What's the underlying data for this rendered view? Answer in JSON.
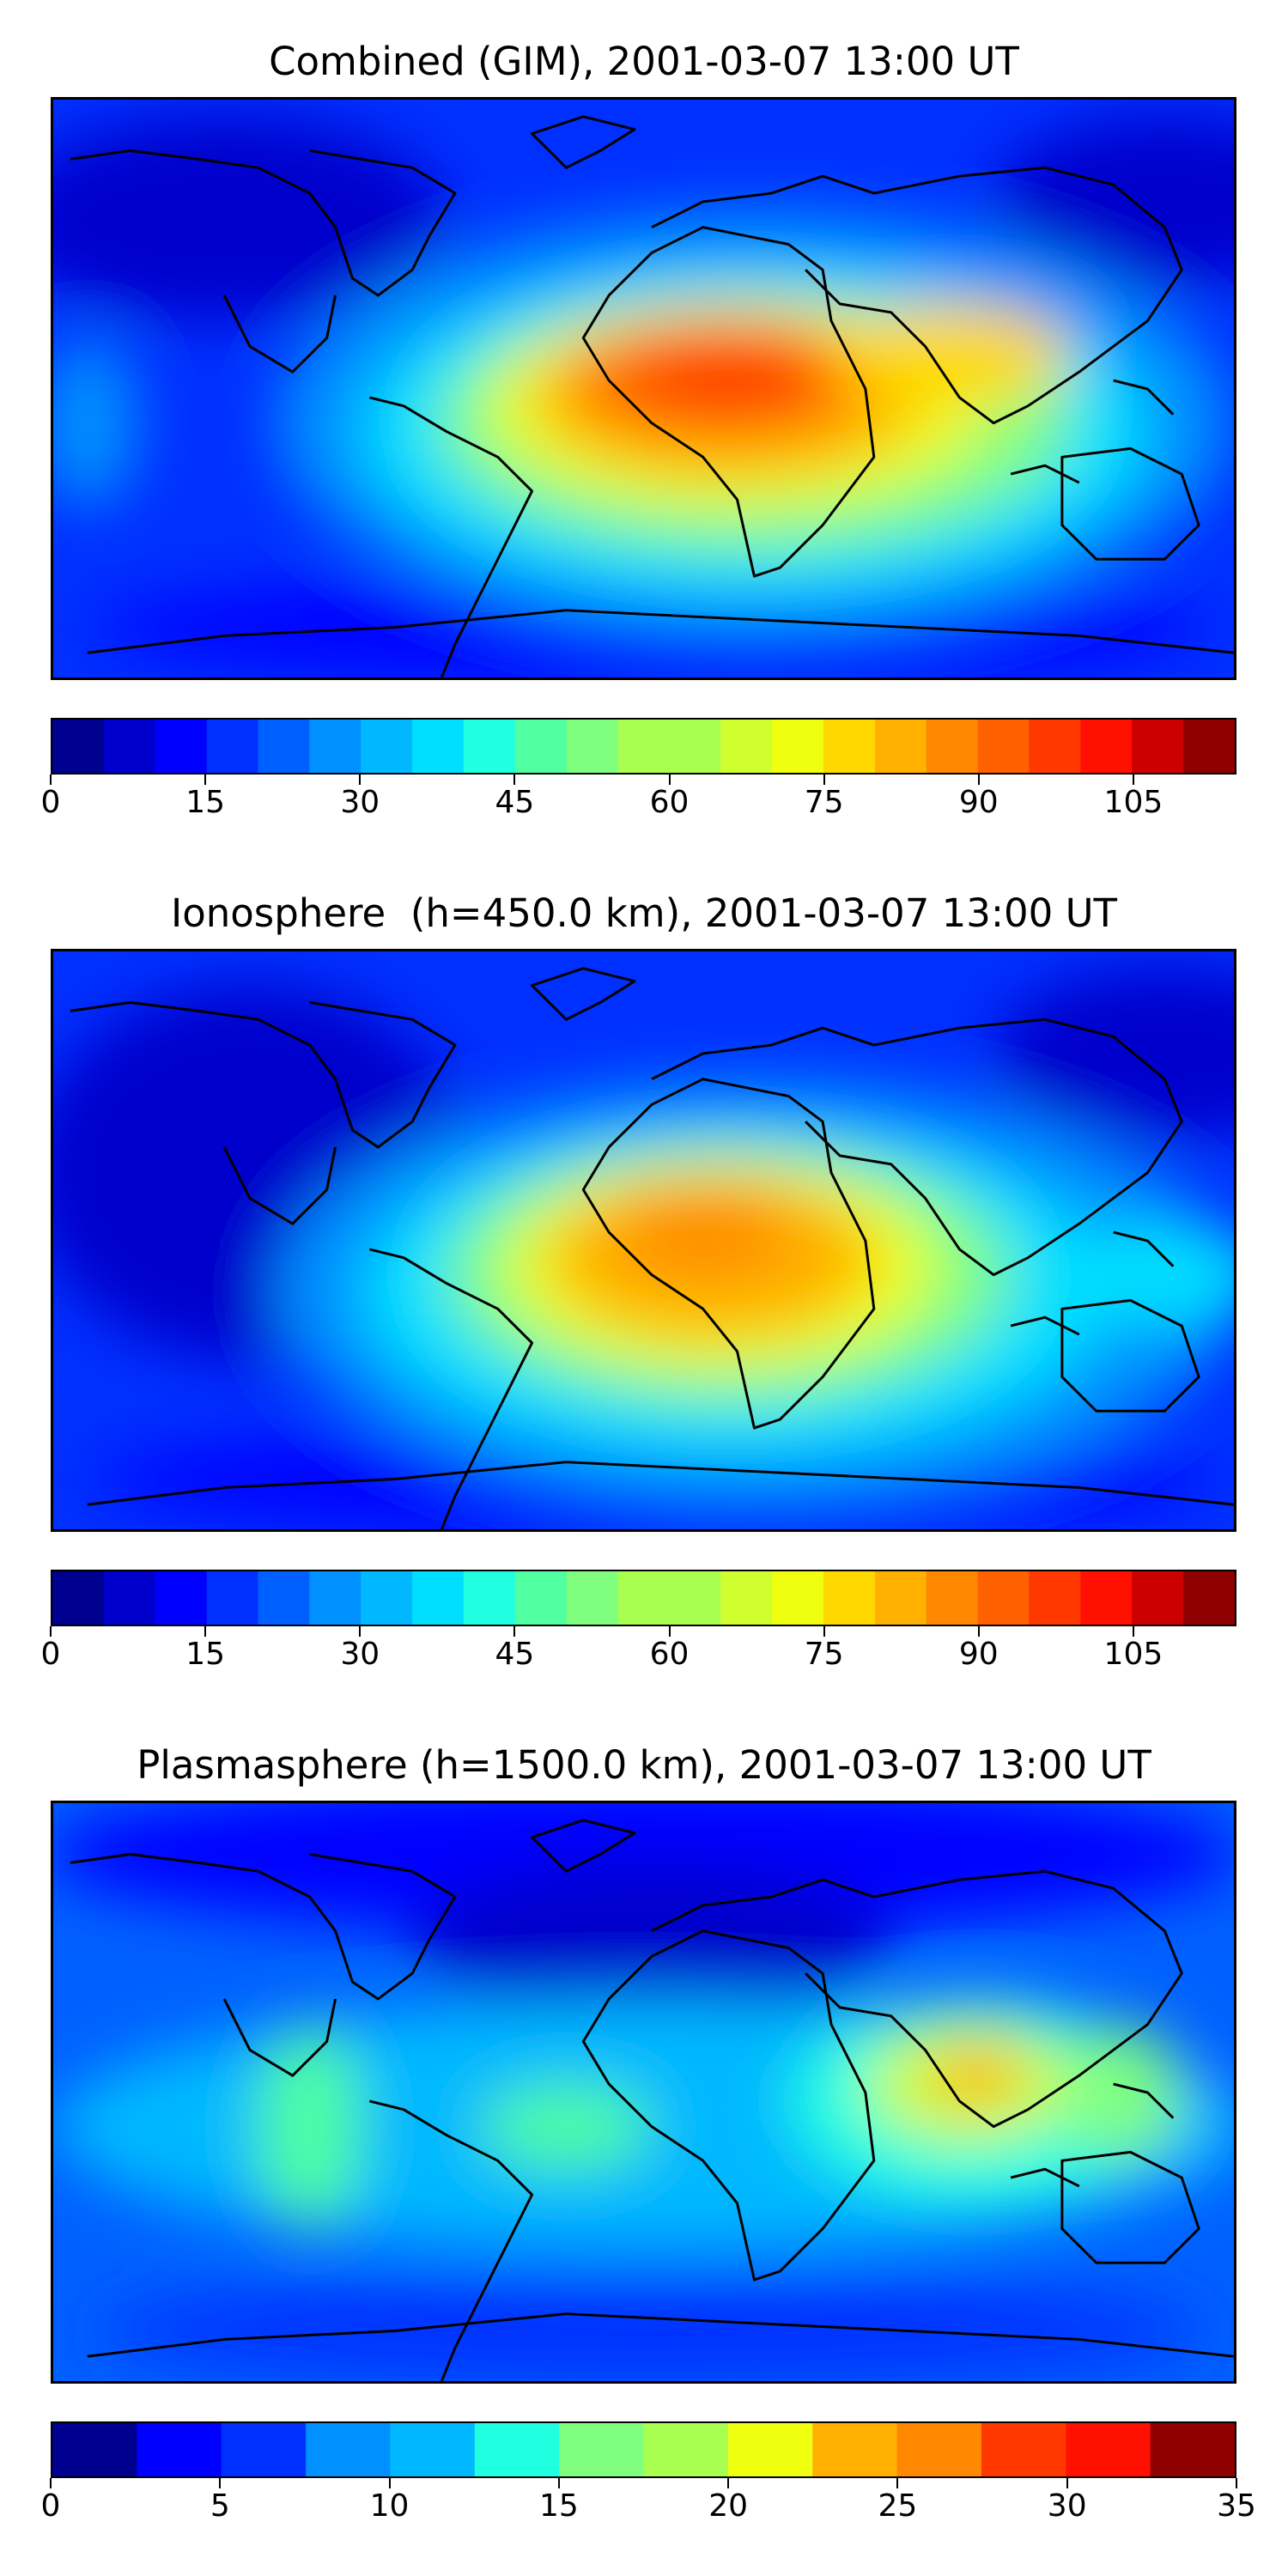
{
  "panels": [
    {
      "title": "Combined (GIM), 2001-03-07 13:00 UT",
      "hotspot": "africa",
      "colorbar": {
        "min": 0,
        "max": 115,
        "step": 5,
        "ticks": [
          "0",
          "15",
          "30",
          "45",
          "60",
          "75",
          "90",
          "105"
        ],
        "tick_values": [
          0,
          15,
          30,
          45,
          60,
          75,
          90,
          105
        ]
      }
    },
    {
      "title": "Ionosphere  (h=450.0 km), 2001-03-07 13:00 UT",
      "hotspot": "africa-weaker",
      "colorbar": {
        "min": 0,
        "max": 115,
        "step": 5,
        "ticks": [
          "0",
          "15",
          "30",
          "45",
          "60",
          "75",
          "90",
          "105"
        ],
        "tick_values": [
          0,
          15,
          30,
          45,
          60,
          75,
          90,
          105
        ]
      }
    },
    {
      "title": "Plasmasphere (h=1500.0 km), 2001-03-07 13:00 UT",
      "hotspot": "asia",
      "colorbar": {
        "min": 0,
        "max": 35,
        "step": 2.5,
        "ticks": [
          "0",
          "5",
          "10",
          "15",
          "20",
          "25",
          "30",
          "35"
        ],
        "tick_values": [
          0,
          5,
          10,
          15,
          20,
          25,
          30,
          35
        ]
      }
    }
  ],
  "palette": [
    "#00008f",
    "#0000cc",
    "#0000ff",
    "#0030ff",
    "#0060ff",
    "#0090ff",
    "#00b8ff",
    "#00dfff",
    "#20ffdf",
    "#50ff9f",
    "#80ff7f",
    "#a8ff50",
    "#d0ff2f",
    "#f0ff10",
    "#ffd800",
    "#ffb000",
    "#ff8800",
    "#ff6000",
    "#ff3800",
    "#ff1000",
    "#cc0000",
    "#8f0000"
  ]
}
